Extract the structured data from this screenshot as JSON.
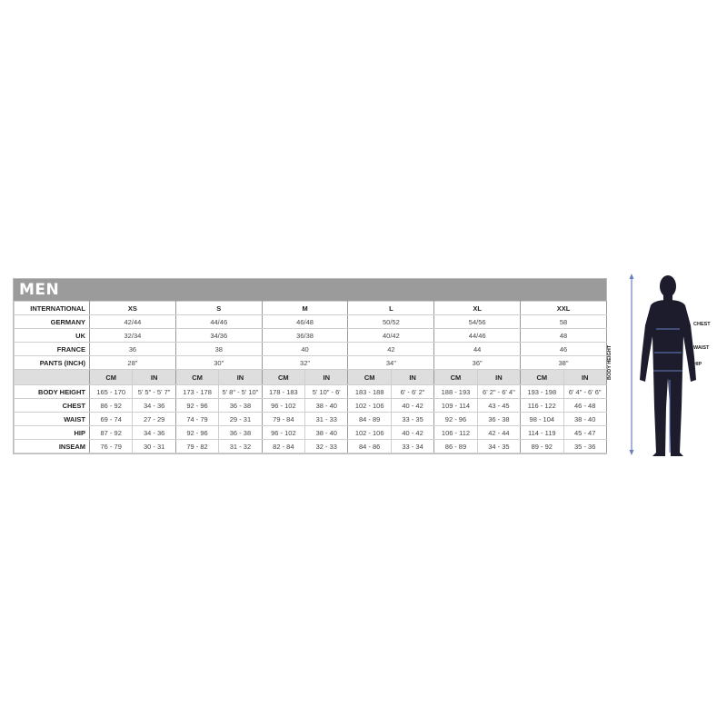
{
  "title": "MEN",
  "sizes": [
    "XS",
    "S",
    "M",
    "L",
    "XL",
    "XXL"
  ],
  "size_rows": [
    {
      "label": "INTERNATIONAL",
      "values": [
        "XS",
        "S",
        "M",
        "L",
        "XL",
        "XXL"
      ]
    },
    {
      "label": "GERMANY",
      "values": [
        "42/44",
        "44/46",
        "46/48",
        "50/52",
        "54/56",
        "58"
      ]
    },
    {
      "label": "UK",
      "values": [
        "32/34",
        "34/36",
        "36/38",
        "40/42",
        "44/46",
        "48"
      ]
    },
    {
      "label": "FRANCE",
      "values": [
        "36",
        "38",
        "40",
        "42",
        "44",
        "46"
      ]
    },
    {
      "label": "PANTS (INCH)",
      "values": [
        "28\"",
        "30\"",
        "32\"",
        "34\"",
        "36\"",
        "38\""
      ]
    }
  ],
  "units": {
    "cm": "CM",
    "in": "IN"
  },
  "measure_rows": [
    {
      "label": "BODY HEIGHT",
      "values": [
        "165 - 170",
        "5' 5\" - 5' 7\"",
        "173 - 178",
        "5' 8\" - 5' 10\"",
        "178 - 183",
        "5' 10\" - 6'",
        "183 - 188",
        "6' - 6' 2\"",
        "188 - 193",
        "6' 2\" - 6' 4\"",
        "193 - 198",
        "6' 4\" - 6' 6\""
      ]
    },
    {
      "label": "CHEST",
      "values": [
        "86 - 92",
        "34 - 36",
        "92 - 96",
        "36 - 38",
        "96 - 102",
        "38 - 40",
        "102 - 106",
        "40 - 42",
        "109 - 114",
        "43 - 45",
        "116 - 122",
        "46 - 48"
      ]
    },
    {
      "label": "WAIST",
      "values": [
        "69 - 74",
        "27 - 29",
        "74 - 79",
        "29 - 31",
        "79 - 84",
        "31 - 33",
        "84 - 89",
        "33 - 35",
        "92 - 96",
        "36 - 38",
        "98 - 104",
        "38 - 40"
      ]
    },
    {
      "label": "HIP",
      "values": [
        "87 - 92",
        "34 - 36",
        "92 - 96",
        "36 - 38",
        "96 - 102",
        "38 - 40",
        "102 - 106",
        "40 - 42",
        "106 - 112",
        "42 - 44",
        "114 - 119",
        "45 - 47"
      ]
    },
    {
      "label": "INSEAM",
      "values": [
        "76 - 79",
        "30 - 31",
        "79 - 82",
        "31 - 32",
        "82 - 84",
        "32 - 33",
        "84 - 86",
        "33 - 34",
        "86 - 89",
        "34 - 35",
        "89 - 92",
        "35 - 36"
      ]
    }
  ],
  "figure": {
    "chest": "CHEST",
    "waist": "WAIST",
    "hip": "HIP",
    "body_height": "BODY HEIGHT",
    "inseam": "INSEAM"
  },
  "colors": {
    "header": "#9b9b9b",
    "units_band": "#dedede",
    "silhouette": "#1a1a2e",
    "measure_lines": "#6a7fc0"
  }
}
